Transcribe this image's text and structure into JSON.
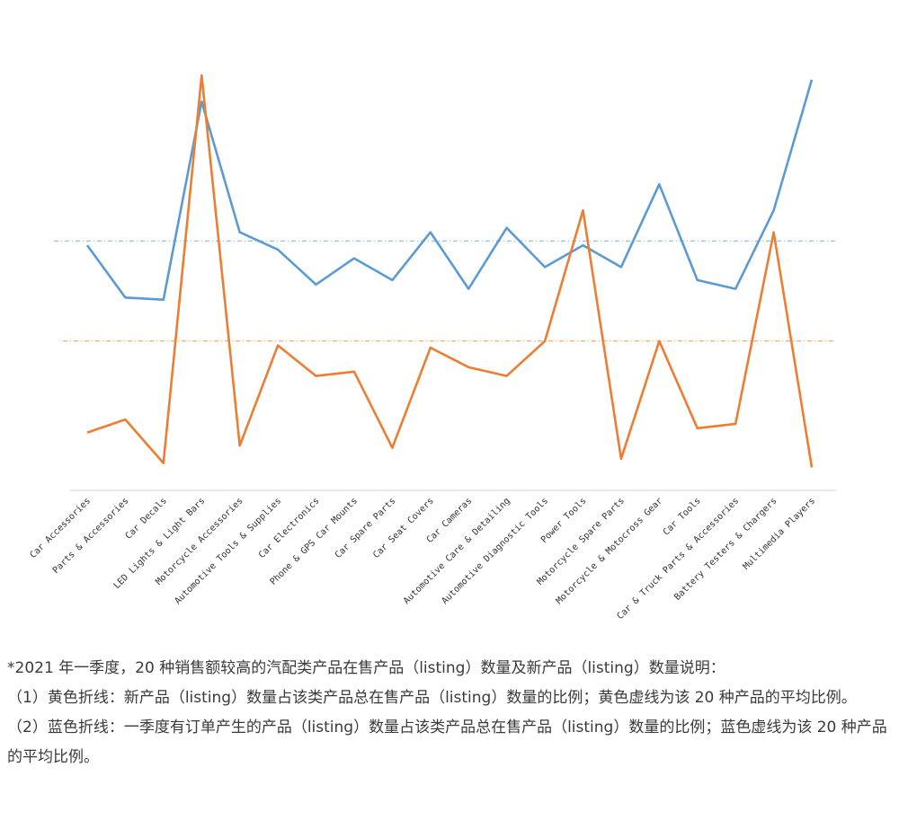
{
  "chart_data": {
    "type": "line",
    "categories": [
      "Car Accessories",
      "Parts & Accessories",
      "Car Decals",
      "LED Lights & Light Bars",
      "Motorcycle Accessories",
      "Automotive Tools & Supplies",
      "Car Electronics",
      "Phone & GPS Car Mounts",
      "Car Spare Parts",
      "Car Seat Covers",
      "Car Cameras",
      "Automotive Care & Detailing",
      "Automotive Diagnostic Tools",
      "Power Tools",
      "Motorcycle Spare Parts",
      "Motorcycle & Motocross Gear",
      "Car Tools",
      "Car & Truck Parts & Accessories",
      "Battery Testers & Chargers",
      "Multimedia Players"
    ],
    "series": [
      {
        "color": "#5b9bd5",
        "values": [
          54,
          42,
          41.5,
          87,
          57,
          53,
          45,
          51,
          46,
          57,
          44,
          58,
          49,
          54,
          49,
          68,
          46,
          44,
          62,
          92
        ]
      },
      {
        "color": "#ed7d31",
        "values": [
          11,
          14,
          4,
          93,
          8,
          31,
          24,
          25,
          7.5,
          30.5,
          26,
          24,
          32,
          62,
          5,
          32,
          12,
          13,
          57,
          3
        ]
      }
    ],
    "reference_lines": [
      {
        "color": "#5b9bd5",
        "value": 55,
        "style": "dash-dot"
      },
      {
        "color": "#ed7d31",
        "value": 32,
        "style": "dash-dot"
      }
    ],
    "ylim": [
      0,
      100
    ],
    "grid": false,
    "legend": "none",
    "title": "",
    "xlabel": "",
    "ylabel": ""
  },
  "notes": {
    "line1": "*2021 年一季度，20 种销售额较高的汽配类产品在售产品（listing）数量及新产品（listing）数量说明：",
    "line2": "（1）黄色折线：新产品（listing）数量占该类产品总在售产品（listing）数量的比例；黄色虚线为该 20 种产品的平均比例。",
    "line3": "（2）蓝色折线：一季度有订单产生的产品（listing）数量占该类产品总在售产品（listing）数量的比例；蓝色虚线为该 20 种产品的平均比例。"
  }
}
